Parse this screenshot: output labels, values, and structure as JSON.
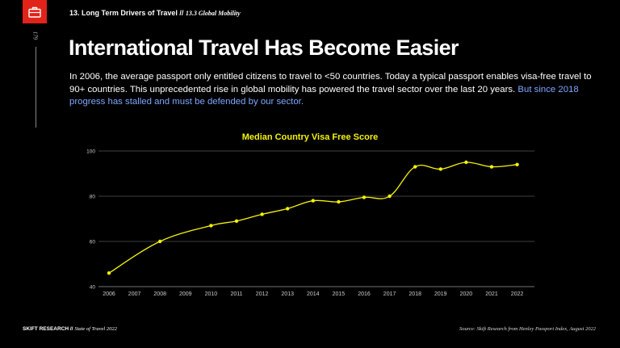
{
  "header": {
    "section": "13. Long Term Drivers of Travel //",
    "subsection": "13.3 Global Mobility",
    "page_number": "179"
  },
  "title": "International Travel Has Become Easier",
  "intro": {
    "text": "In 2006, the average passport only entitled citizens to travel to <50 countries. Today a typical passport enables visa-free travel to 90+ countries. This unprecedented rise in global mobility has powered the travel sector over the last 20 years.",
    "highlight": "But since 2018 progress has stalled and must be defended by our sector."
  },
  "colors": {
    "background": "#000000",
    "accent": "#e2231a",
    "line": "#f5f20a",
    "highlight_text": "#7fa7ff"
  },
  "icons": {
    "logo": "briefcase-icon"
  },
  "chart_data": {
    "type": "line",
    "title": "Median Country Visa Free Score",
    "xlabel": "",
    "ylabel": "",
    "ylim": [
      40,
      100
    ],
    "yticks": [
      40,
      60,
      80,
      100
    ],
    "grid": true,
    "x": [
      "2006",
      "2007",
      "2008",
      "2009",
      "2010",
      "2011",
      "2012",
      "2013",
      "2014",
      "2015",
      "2016",
      "2017",
      "2018",
      "2019",
      "2020",
      "2021",
      "2022"
    ],
    "series": [
      {
        "points": [
          {
            "x": "2006",
            "y": 46
          },
          {
            "x": "2008",
            "y": 60
          },
          {
            "x": "2010",
            "y": 67
          },
          {
            "x": "2011",
            "y": 69
          },
          {
            "x": "2012",
            "y": 72
          },
          {
            "x": "2013",
            "y": 74.5
          },
          {
            "x": "2014",
            "y": 78
          },
          {
            "x": "2015",
            "y": 77.5
          },
          {
            "x": "2016",
            "y": 79.5
          },
          {
            "x": "2017",
            "y": 80
          },
          {
            "x": "2018",
            "y": 93
          },
          {
            "x": "2019",
            "y": 92
          },
          {
            "x": "2020",
            "y": 95
          },
          {
            "x": "2021",
            "y": 93
          },
          {
            "x": "2022",
            "y": 94
          }
        ]
      }
    ]
  },
  "footer": {
    "brand": "SKIFT RESEARCH",
    "separator": "//",
    "publication": "State of Travel 2022",
    "source": "Source: Skift Research from Henley Passport Index, August 2022"
  }
}
